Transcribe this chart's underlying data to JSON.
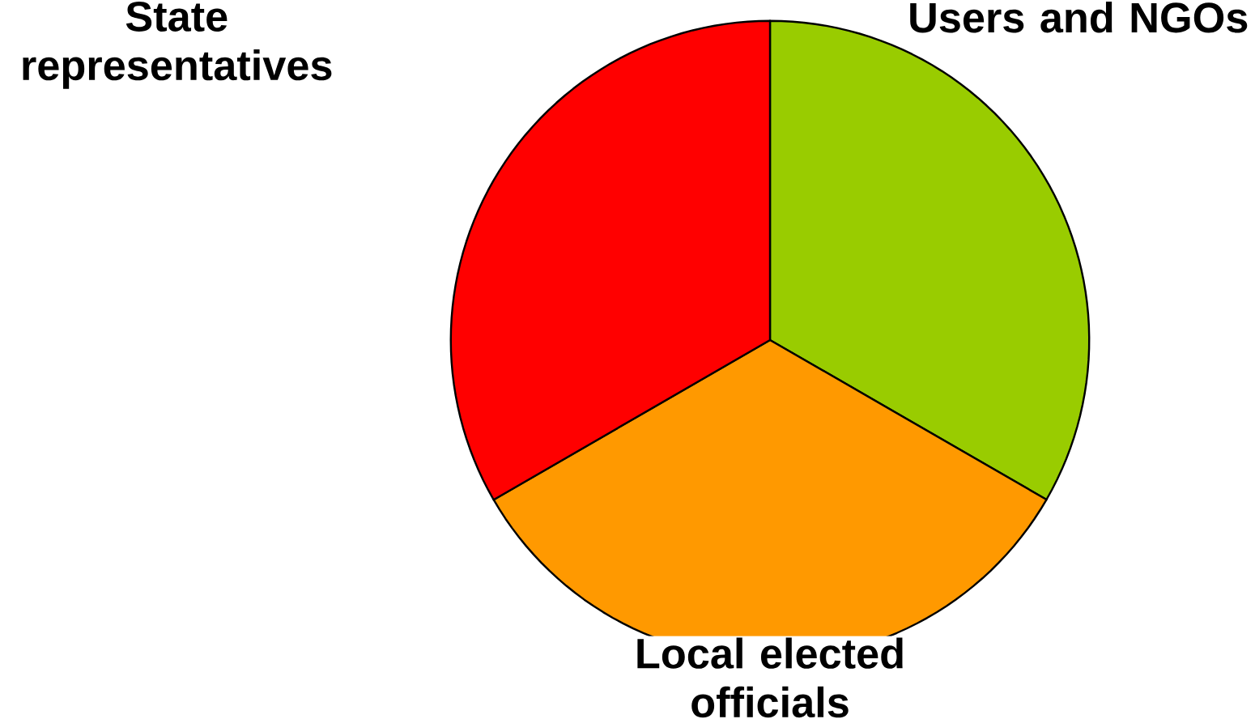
{
  "chart_data": {
    "type": "pie",
    "categories": [
      "Users and NGOs",
      "Local elected officials",
      "State representatives"
    ],
    "values": [
      33.33,
      33.33,
      33.34
    ],
    "colors": [
      "#99cc00",
      "#ff9900",
      "#ff0000"
    ]
  }
}
